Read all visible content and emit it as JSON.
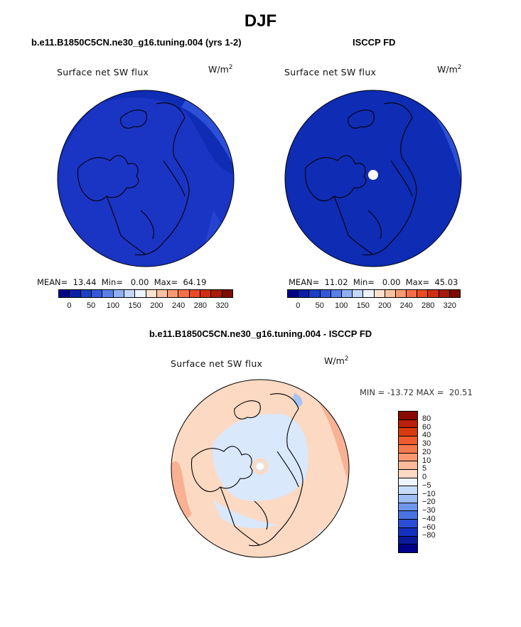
{
  "title": "DJF",
  "panels": [
    {
      "subtitle": "b.e11.B1850C5CN.ne30_g16.tuning.004 (yrs 1-2)",
      "label": "Surface net SW flux",
      "units_base": "W/m",
      "units_exp": "2",
      "stats_text": "MEAN=  13.44  Min=   0.00  Max=  64.19"
    },
    {
      "subtitle": "ISCCP FD",
      "label": "Surface net SW flux",
      "units_base": "W/m",
      "units_exp": "2",
      "stats_text": "MEAN=  11.02  Min=   0.00  Max=  45.03"
    }
  ],
  "colorbar_abs": {
    "colors": [
      "#00008b",
      "#0a1fa8",
      "#1c3fc4",
      "#3558d8",
      "#5a7fe8",
      "#8fb0f2",
      "#c3d8fa",
      "#eef4fd",
      "#fde2cf",
      "#fcc1a0",
      "#f99a72",
      "#f47048",
      "#e94b23",
      "#cf2e10",
      "#aa1a08",
      "#7c0b04"
    ],
    "ticks": [
      "0",
      "50",
      "100",
      "150",
      "200",
      "240",
      "280",
      "320"
    ]
  },
  "diff_panel": {
    "subtitle": "b.e11.B1850C5CN.ne30_g16.tuning.004 - ISCCP FD",
    "label": "Surface net SW flux",
    "units_base": "W/m",
    "units_exp": "2",
    "minmax_text": "MIN = -13.72 MAX =  20.51"
  },
  "colorbar_diff": {
    "colors": [
      "#8b0a00",
      "#b82008",
      "#d93a12",
      "#ef5a2e",
      "#f7794b",
      "#fb9a72",
      "#fcba9a",
      "#fdd9c4",
      "#eef4fd",
      "#c7dcfa",
      "#9dbdf4",
      "#6e97ec",
      "#4a73e2",
      "#2a4fd6",
      "#1431c0",
      "#0a1a9a",
      "#00008b"
    ],
    "ticks": [
      "80",
      "60",
      "40",
      "30",
      "20",
      "10",
      "5",
      "0",
      "−5",
      "−10",
      "−20",
      "−30",
      "−40",
      "−60",
      "−80"
    ]
  },
  "map_colors": {
    "abs_fill": "#1a34c4",
    "abs_inner": "#0e2cb4",
    "abs_edge": "#2c4fd8",
    "pole_hole": "#ffffff",
    "diff_base": "#fcd9c2",
    "diff_warm": "#f9b193",
    "diff_cool": "#d9e8fb",
    "diff_blue": "#a7c4f4"
  }
}
